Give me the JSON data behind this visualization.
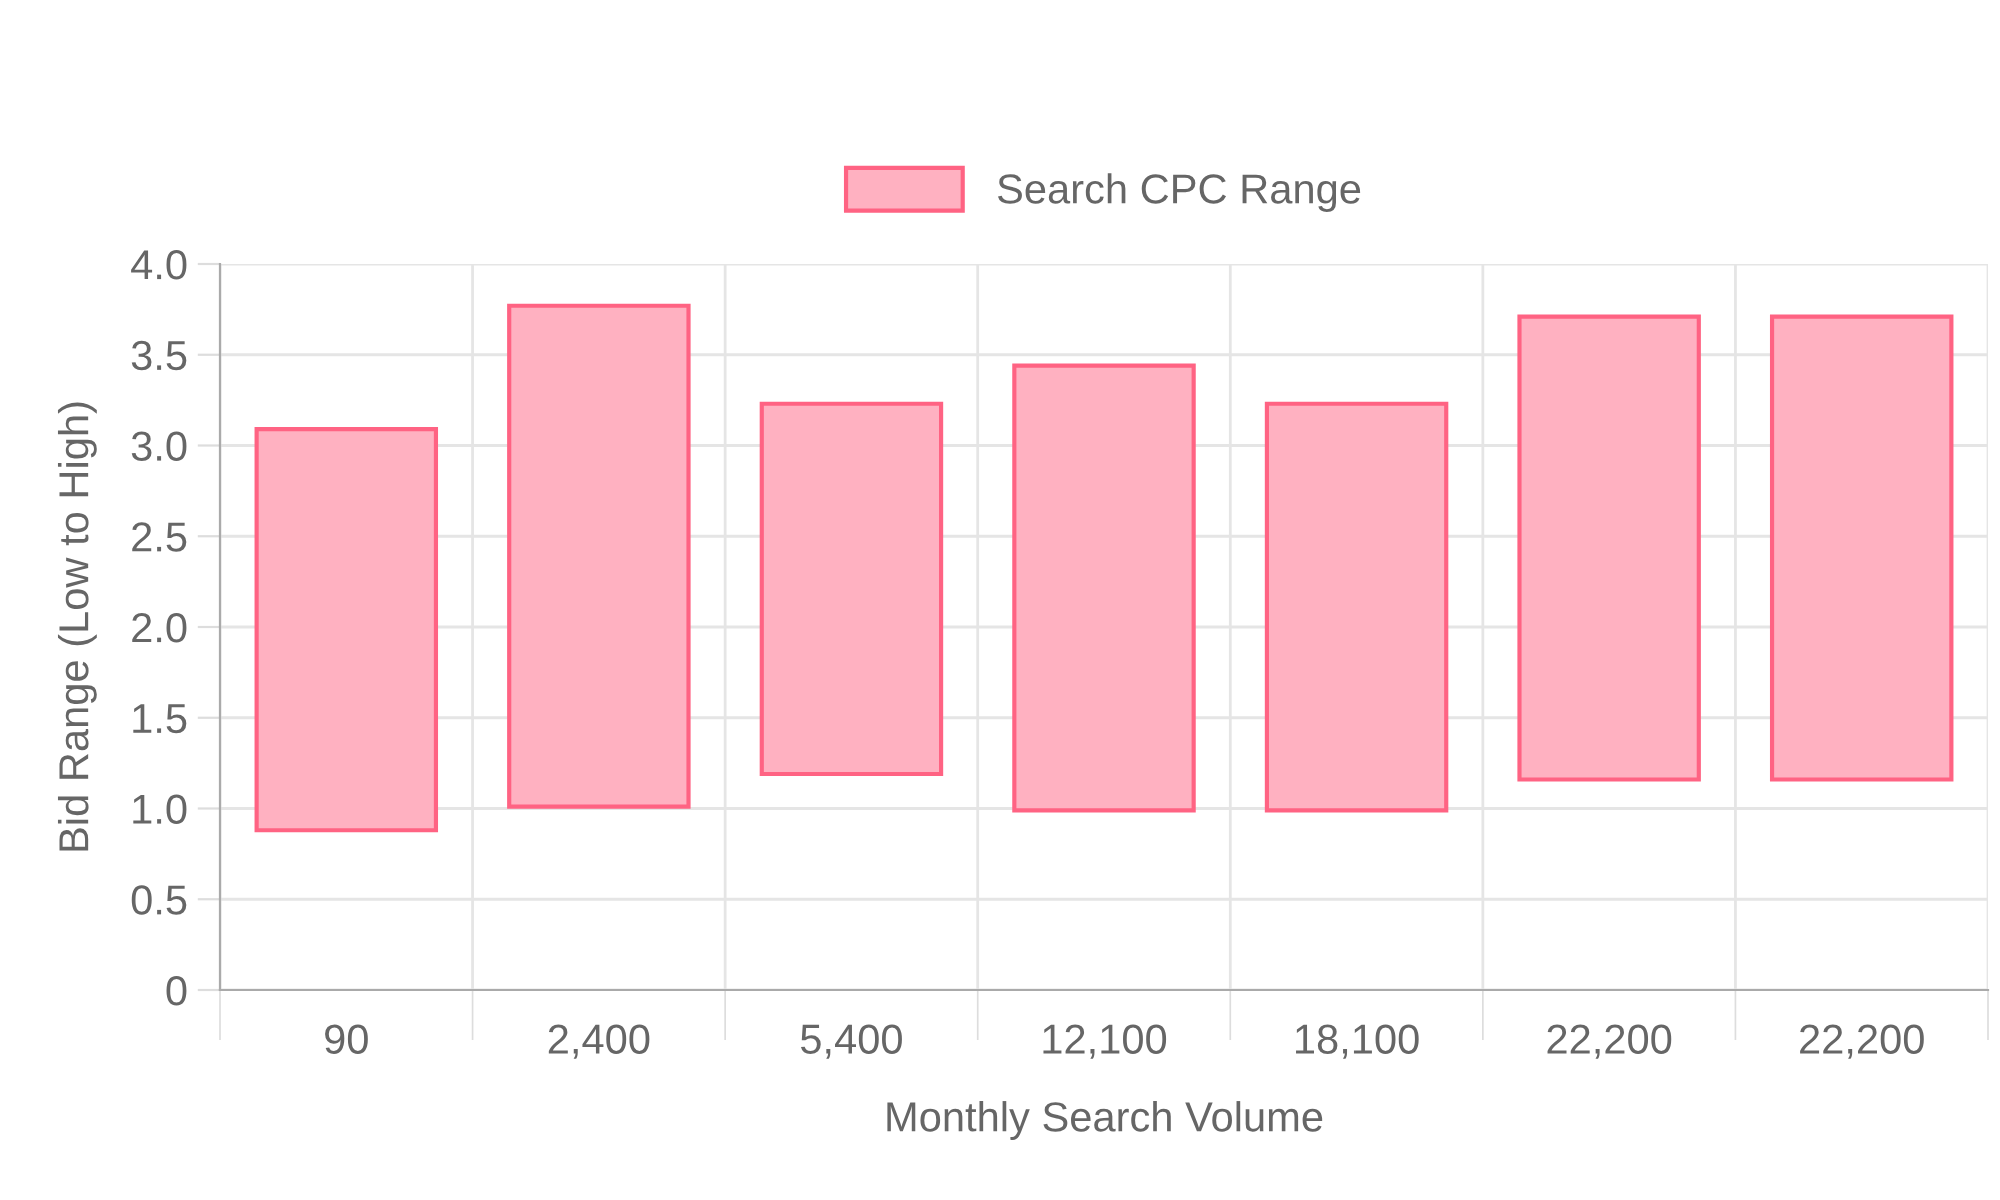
{
  "chart_data": {
    "type": "bar",
    "xlabel": "Monthly Search Volume",
    "ylabel": "Bid Range (Low to High)",
    "categories": [
      "90",
      "2,400",
      "5,400",
      "12,100",
      "18,100",
      "22,200",
      "22,200"
    ],
    "series": [
      {
        "name": "Search CPC Range",
        "color": "#ffb1c1",
        "values": [
          2.21,
          2.76,
          2.04,
          2.45,
          2.24,
          2.55,
          2.55
        ],
        "base": [
          0.88,
          1.01,
          1.19,
          0.99,
          0.99,
          1.16,
          1.16
        ]
      }
    ],
    "ylim": [
      0,
      4
    ],
    "yticks": [
      0,
      {
        "value": 0.5,
        "label": "0.5"
      },
      {
        "value": 1,
        "label": "1.0"
      },
      {
        "value": 1.5,
        "label": "1.5"
      },
      {
        "value": 2,
        "label": "2.0"
      },
      {
        "value": 2.5,
        "label": "2.5"
      },
      {
        "value": 3,
        "label": "3.0"
      },
      {
        "value": 3.5,
        "label": "3.5"
      },
      {
        "value": 4,
        "label": "4.0"
      }
    ],
    "grid": true,
    "legend": "top"
  }
}
